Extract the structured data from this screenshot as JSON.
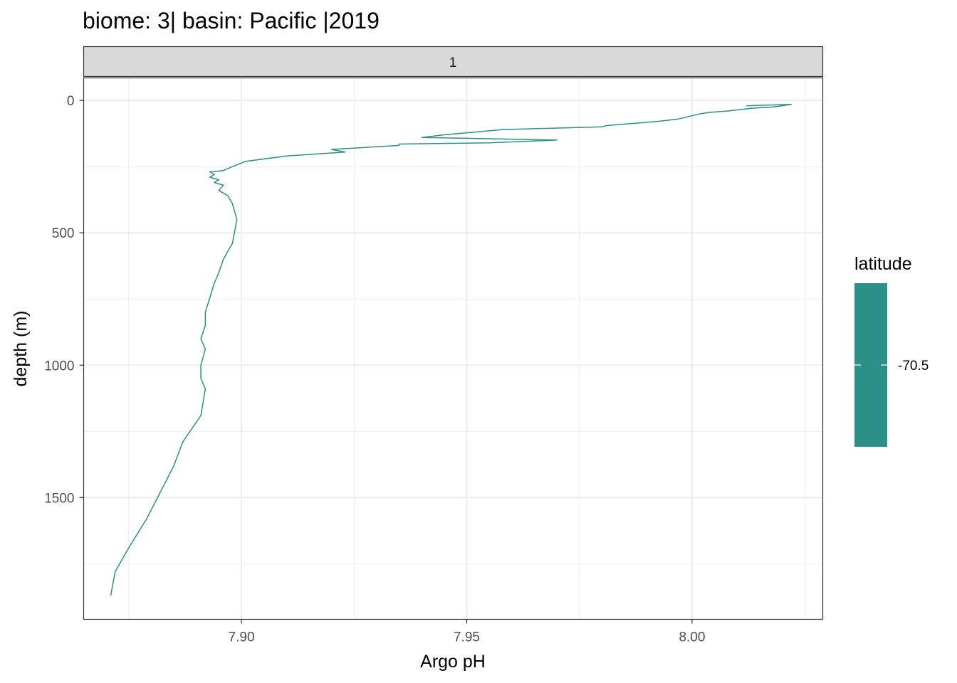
{
  "chart_data": {
    "type": "line",
    "title": "biome: 3| basin: Pacific |2019",
    "facet_label": "1",
    "xlabel": "Argo pH",
    "ylabel": "depth (m)",
    "xlim": [
      7.865,
      8.029
    ],
    "ylim": [
      -85,
      1960
    ],
    "y_reversed": true,
    "x_ticks": [
      7.9,
      7.95,
      8.0
    ],
    "x_tick_labels": [
      "7.90",
      "7.95",
      "8.00"
    ],
    "y_ticks": [
      0,
      500,
      1000,
      1500
    ],
    "y_tick_labels": [
      "0",
      "500",
      "1000",
      "1500"
    ],
    "grid": true,
    "legend": {
      "title": "latitude",
      "position": "right",
      "values": [
        -70.5
      ],
      "labels": [
        "-70.5"
      ],
      "color": "#2a9088"
    },
    "series": [
      {
        "color": "#2a9088",
        "x": [
          8.012,
          8.022,
          8.018,
          8.013,
          8.008,
          8.004,
          8.002,
          7.997,
          7.992,
          7.981,
          7.98,
          7.958,
          7.945,
          7.94,
          7.97,
          7.955,
          7.935,
          7.935,
          7.92,
          7.923,
          7.91,
          7.901,
          7.898,
          7.896,
          7.893,
          7.894,
          7.893,
          7.895,
          7.894,
          7.896,
          7.895,
          7.897,
          7.898,
          7.899,
          7.898,
          7.896,
          7.895,
          7.894,
          7.893,
          7.892,
          7.892,
          7.891,
          7.892,
          7.891,
          7.891,
          7.892,
          7.891,
          7.887,
          7.885,
          7.879,
          7.875,
          7.872,
          7.871
        ],
        "y": [
          20,
          15,
          25,
          30,
          40,
          45,
          50,
          70,
          80,
          95,
          100,
          110,
          130,
          140,
          150,
          160,
          165,
          170,
          185,
          195,
          210,
          230,
          250,
          265,
          270,
          280,
          290,
          300,
          310,
          320,
          340,
          360,
          390,
          450,
          540,
          600,
          650,
          690,
          745,
          800,
          850,
          900,
          940,
          1000,
          1050,
          1090,
          1190,
          1290,
          1380,
          1580,
          1690,
          1780,
          1870
        ]
      }
    ]
  }
}
